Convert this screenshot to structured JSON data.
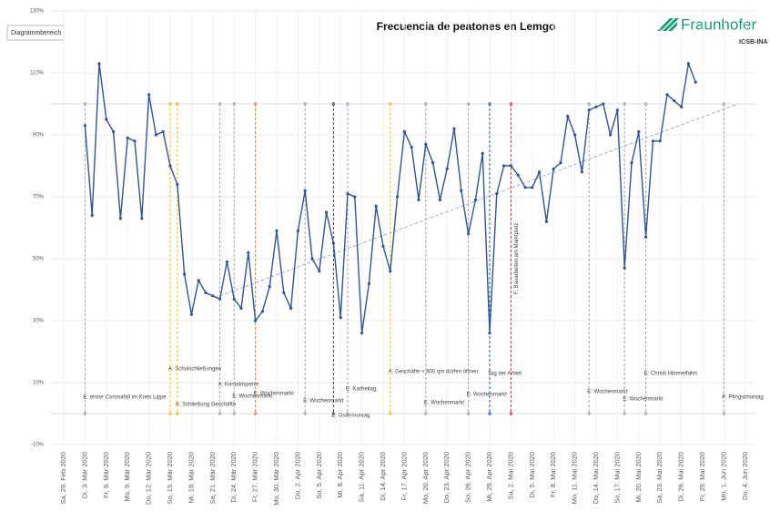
{
  "chart_data": {
    "type": "line",
    "title": "Frecuencia de peatones en Lemgo",
    "tooltip": "Diagrammbereich",
    "logo": {
      "name": "Fraunhofer",
      "unit": "IOSB-INA"
    },
    "categories": [
      "Sa, 29. Feb 2020",
      null,
      null,
      "Di, 3. Mär 2020",
      null,
      null,
      "Fr, 6. Mär 2020",
      null,
      null,
      "Mo, 9. Mär 2020",
      null,
      null,
      "Do, 12. Mär 2020",
      null,
      null,
      "So, 15. Mär 2020",
      null,
      null,
      "Mi, 18. Mär 2020",
      null,
      null,
      "Sa, 21. Mär 2020",
      null,
      null,
      "Di, 24. Mär 2020",
      null,
      null,
      "Fr, 27. Mär 2020",
      null,
      null,
      "Mo, 30. Mär 2020",
      null,
      null,
      "Do, 2. Apr 2020",
      null,
      null,
      "So, 5. Apr 2020",
      null,
      null,
      "Mi, 8. Apr 2020",
      null,
      null,
      "Sa, 11. Apr 2020",
      null,
      null,
      "Di, 14. Apr 2020",
      null,
      null,
      "Fr, 17. Apr 2020",
      null,
      null,
      "Mo, 20. Apr 2020",
      null,
      null,
      "Do, 23. Apr 2020",
      null,
      null,
      "So, 26. Apr 2020",
      null,
      null,
      "Mi, 29. Apr 2020",
      null,
      null,
      "Sa, 2. Mai 2020",
      null,
      null,
      "Di, 5. Mai 2020",
      null,
      null,
      "Fr, 8. Mai 2020",
      null,
      null,
      "Mo, 11. Mai 2020",
      null,
      null,
      "Do, 14. Mai 2020",
      null,
      null,
      "So, 17. Mai 2020",
      null,
      null,
      "Mi, 20. Mai 2020",
      null,
      null,
      "Sa, 23. Mai 2020",
      null,
      null,
      "Di, 26. Mai 2020",
      null,
      null,
      "Fr, 29. Mai 2020",
      null,
      null,
      "Mo, 1. Jun 2020",
      null,
      null,
      "Do, 4. Jun 2020"
    ],
    "series": [
      {
        "color": "#2f5597",
        "values": [
          null,
          null,
          null,
          93,
          64,
          113,
          95,
          91,
          63,
          89,
          88,
          63,
          103,
          90,
          91,
          80,
          74,
          45,
          32,
          43,
          39,
          38,
          37,
          49,
          37,
          34,
          52,
          30,
          33,
          41,
          59,
          39,
          34,
          59,
          72,
          50,
          46,
          65,
          55,
          31,
          71,
          70,
          26,
          42,
          67,
          54,
          46,
          70,
          91,
          86,
          69,
          87,
          81,
          69,
          79,
          92,
          72,
          58,
          69,
          84,
          26,
          71,
          80,
          80,
          77,
          73,
          73,
          78,
          62,
          79,
          81,
          96,
          90,
          78,
          98,
          99,
          100,
          90,
          98,
          47,
          81,
          91,
          57,
          88,
          88,
          103,
          101,
          99,
          113,
          107,
          null,
          null,
          null,
          null,
          null,
          null,
          null
        ]
      }
    ],
    "trendline": {
      "x": [
        22,
        95
      ],
      "values": [
        38,
        100
      ],
      "color": "#9fb3d1"
    },
    "ylim": [
      -10,
      130
    ],
    "yticks": [
      {
        "value": -10,
        "label": "-10%"
      },
      {
        "value": 10,
        "label": "10%"
      },
      {
        "value": 30,
        "label": "30%"
      },
      {
        "value": 50,
        "label": "50%"
      },
      {
        "value": 70,
        "label": "70%"
      },
      {
        "value": 90,
        "label": "90%"
      },
      {
        "value": 110,
        "label": "110%"
      },
      {
        "value": 130,
        "label": "130%"
      }
    ],
    "grid": true,
    "events": [
      {
        "x": 3,
        "color": "#a6a6a6",
        "label": "E: erster Coronafall im Kreis Lippe"
      },
      {
        "x": 15,
        "color": "#ffc000",
        "label": "A: Schulschließungen"
      },
      {
        "x": 16,
        "color": "#ffc000",
        "label": "A: Schließung Geschäfte"
      },
      {
        "x": 22,
        "color": "#a6a6a6",
        "label": "A: Kontaktsperre"
      },
      {
        "x": 24,
        "color": "#a6a6a6",
        "label": "E: Wochenmarkt"
      },
      {
        "x": 27,
        "color": "#ed7d31",
        "label": "E: Wochenmarkt"
      },
      {
        "x": 34,
        "color": "#a6a6a6",
        "label": "E: Wochenmarkt"
      },
      {
        "x": 38,
        "color": "#404040",
        "label": "E: Ostermontag"
      },
      {
        "x": 40,
        "color": "#a6a6a6",
        "label": "E: Karfreitag"
      },
      {
        "x": 46,
        "color": "#ffc000",
        "label": "A: Geschäfte < 800 qm dürfen öffnen"
      },
      {
        "x": 51,
        "color": "#a6a6a6",
        "label": "E: Wochenmarkt"
      },
      {
        "x": 57,
        "color": "#a6a6a6",
        "label": "E: Wochenmarkt"
      },
      {
        "x": 60,
        "color": "#2f5597",
        "label": "Tag der Arbeit"
      },
      {
        "x": 63,
        "color": "#e03030",
        "label": "F: Bauarbeiten am Marktplatz"
      },
      {
        "x": 74,
        "color": "#a6a6a6",
        "label": "E: Wochenmarkt"
      },
      {
        "x": 79,
        "color": "#a6a6a6",
        "label": "E: Wochenmarkt"
      },
      {
        "x": 82,
        "color": "#a6a6a6",
        "label": "E: Christi Himmelfahrt"
      },
      {
        "x": 93,
        "color": "#a6a6a6",
        "label": "F: Pfingstmontag"
      }
    ]
  }
}
